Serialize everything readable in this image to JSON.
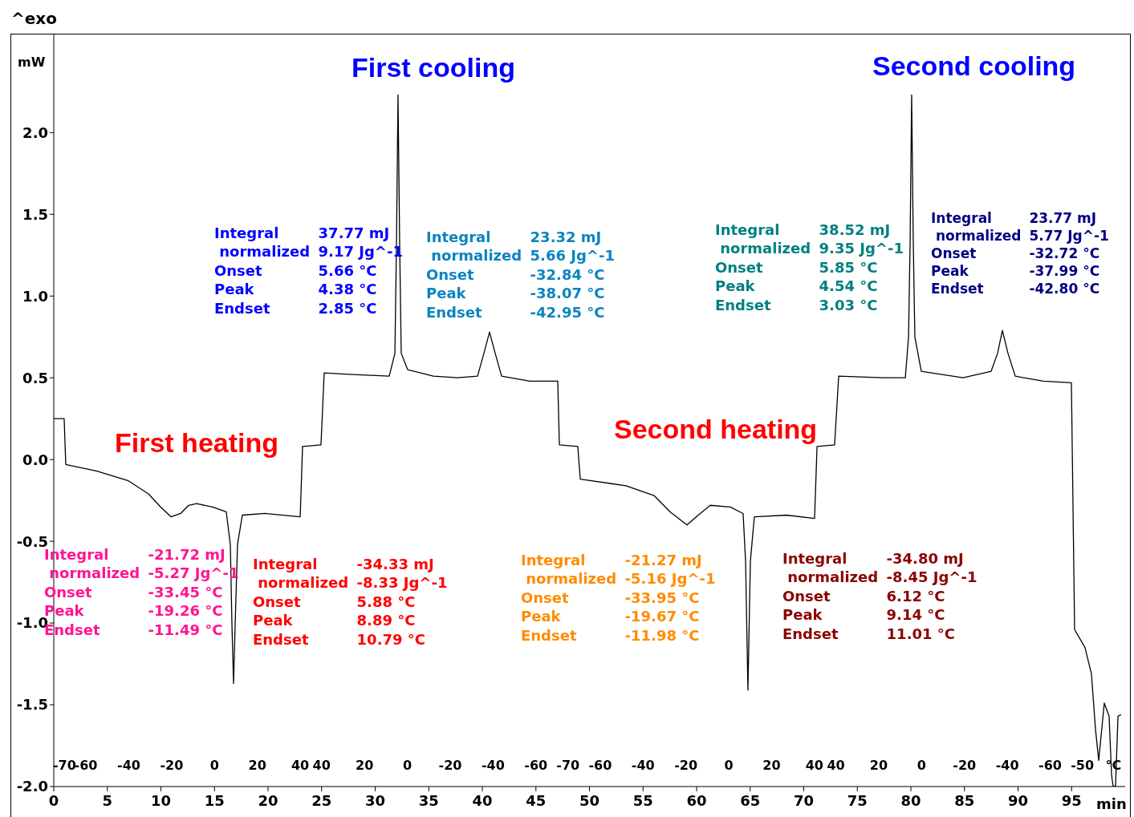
{
  "chart_data": {
    "type": "line",
    "xlabel": "min",
    "ylabel": "mW",
    "xlim": [
      0,
      100
    ],
    "xticks": [
      0,
      5,
      10,
      15,
      20,
      25,
      30,
      35,
      40,
      45,
      50,
      55,
      60,
      65,
      70,
      75,
      80,
      85,
      90,
      95
    ],
    "ylim": [
      -2.0,
      2.6
    ],
    "yticks": [
      {
        "value": -2,
        "label": "-2.0"
      },
      -1.5,
      {
        "value": -1,
        "label": "-1.0"
      },
      -0.5,
      {
        "value": 0,
        "label": "0.0"
      },
      0.5,
      {
        "value": 1,
        "label": "1.0"
      },
      1.5,
      {
        "value": 2,
        "label": "2.0"
      }
    ],
    "grid": false,
    "legend": false,
    "marker": "none",
    "line_style": "solid",
    "series": [
      {
        "color": "#000000",
        "x": [
          0,
          0.97,
          1.12,
          3.97,
          6.97,
          8.84,
          9.96,
          10.94,
          11.84,
          12.58,
          13.33,
          14.83,
          16.1,
          16.48,
          16.63,
          16.78,
          16.93,
          17.15,
          17.6,
          19.7,
          23.0,
          23.22,
          24.94,
          25.24,
          27.94,
          31.31,
          31.84,
          31.99,
          32.13,
          32.28,
          32.43,
          33.03,
          35.43,
          37.68,
          39.55,
          40.15,
          40.67,
          41.2,
          41.8,
          44.42,
          47.04,
          47.19,
          48.91,
          49.14,
          53.41,
          56.03,
          57.53,
          59.1,
          60.15,
          61.27,
          63.15,
          64.34,
          64.57,
          64.79,
          65.02,
          65.39,
          68.39,
          71.01,
          71.24,
          72.88,
          73.26,
          77.38,
          79.48,
          79.78,
          79.93,
          80.07,
          80.22,
          80.37,
          80.97,
          84.87,
          87.49,
          88.09,
          88.54,
          89.06,
          89.74,
          92.36,
          94.98,
          95.28,
          96.25,
          96.85,
          97.23,
          97.53,
          98.05,
          98.5,
          98.73,
          98.88,
          99.1,
          99.33,
          99.63
        ],
        "values": [
          0.25,
          0.25,
          -0.03,
          -0.07,
          -0.13,
          -0.21,
          -0.29,
          -0.35,
          -0.33,
          -0.28,
          -0.27,
          -0.29,
          -0.32,
          -0.52,
          -1.01,
          -1.37,
          -1.01,
          -0.52,
          -0.34,
          -0.33,
          -0.35,
          0.08,
          0.09,
          0.53,
          0.52,
          0.51,
          0.65,
          1.34,
          2.23,
          1.34,
          0.65,
          0.55,
          0.51,
          0.5,
          0.51,
          0.65,
          0.78,
          0.65,
          0.51,
          0.48,
          0.48,
          0.09,
          0.08,
          -0.12,
          -0.16,
          -0.22,
          -0.32,
          -0.4,
          -0.34,
          -0.28,
          -0.29,
          -0.33,
          -0.62,
          -1.41,
          -0.62,
          -0.35,
          -0.34,
          -0.36,
          0.08,
          0.09,
          0.51,
          0.5,
          0.5,
          0.75,
          1.34,
          2.23,
          1.34,
          0.75,
          0.54,
          0.5,
          0.54,
          0.65,
          0.79,
          0.65,
          0.51,
          0.48,
          0.47,
          -1.04,
          -1.15,
          -1.31,
          -1.65,
          -1.84,
          -1.49,
          -1.57,
          -1.93,
          -2.0,
          -2.0,
          -1.57,
          -1.56
        ]
      }
    ],
    "annotations": [
      "^exo",
      "First cooling",
      "Second cooling",
      "First heating",
      "Second heating",
      "Integral\t-21.72 mJ\n normalized\t-5.27 Jg^-1\nOnset\t-33.45 °C\nPeak\t-19.26 °C\nEndset\t-11.49 °C",
      "Integral\t-34.33 mJ\n normalized\t-8.33 Jg^-1\nOnset\t5.88 °C\nPeak\t8.89 °C\nEndset\t10.79 °C",
      "Integral\t37.77 mJ\n normalized\t9.17 Jg^-1\nOnset\t5.66 °C\nPeak\t4.38 °C\nEndset\t2.85 °C",
      "Integral\t23.32 mJ\n normalized\t5.66 Jg^-1\nOnset\t-32.84 °C\nPeak\t-38.07 °C\nEndset\t-42.95 °C",
      "Integral\t-21.27 mJ\n normalized\t-5.16 Jg^-1\nOnset\t-33.95 °C\nPeak\t-19.67 °C\nEndset\t-11.98 °C",
      "Integral\t-34.80 mJ\n normalized\t-8.45 Jg^-1\nOnset\t6.12 °C\nPeak\t9.14 °C\nEndset\t11.01 °C",
      "Integral\t38.52 mJ\n normalized\t9.35 Jg^-1\nOnset\t5.85 °C\nPeak\t4.54 °C\nEndset\t3.03 °C",
      "Integral\t23.77 mJ\n normalized\t5.77 Jg^-1\nOnset\t-32.72 °C\nPeak\t-37.99 °C\nEndset\t-42.80 °C",
      "-70",
      "-60",
      "-40",
      "-20",
      "0",
      "20",
      "40",
      "40",
      "20",
      "0",
      "-20",
      "-40",
      "-60",
      "-70",
      "-60",
      "-40",
      "-20",
      "0",
      "20",
      "40",
      "40",
      "20",
      "0",
      "-20",
      "-40",
      "-60",
      "-50",
      "°C"
    ]
  }
}
